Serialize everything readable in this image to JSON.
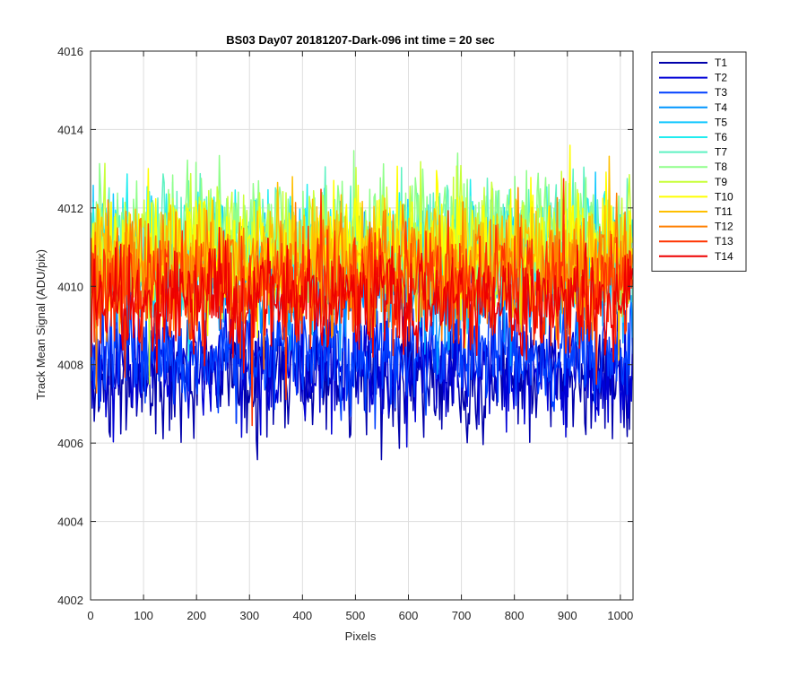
{
  "chart_data": {
    "type": "line",
    "title": "BS03 Day07 20181207-Dark-096 int time = 20 sec",
    "xlabel": "Pixels",
    "ylabel": "Track Mean Signal (ADU/pix)",
    "xlim": [
      0,
      1024
    ],
    "ylim": [
      4002,
      4016
    ],
    "x_ticks": [
      0,
      100,
      200,
      300,
      400,
      500,
      600,
      700,
      800,
      900,
      1000
    ],
    "y_ticks": [
      4002,
      4004,
      4006,
      4008,
      4010,
      4012,
      4014,
      4016
    ],
    "grid": true,
    "legend_position": "outside-top-right",
    "x_range": [
      1,
      1024
    ],
    "series": [
      {
        "name": "T1",
        "color": "#0000aa",
        "mean": 4007.6,
        "spread": 0.95
      },
      {
        "name": "T2",
        "color": "#0000d6",
        "mean": 4007.9,
        "spread": 0.95
      },
      {
        "name": "T3",
        "color": "#0040ff",
        "mean": 4008.3,
        "spread": 0.9
      },
      {
        "name": "T4",
        "color": "#0096ff",
        "mean": 4010.2,
        "spread": 1.0
      },
      {
        "name": "T5",
        "color": "#13c8ff",
        "mean": 4010.6,
        "spread": 1.0
      },
      {
        "name": "T6",
        "color": "#20ecf0",
        "mean": 4010.9,
        "spread": 1.0
      },
      {
        "name": "T7",
        "color": "#5ef2c2",
        "mean": 4011.0,
        "spread": 1.0
      },
      {
        "name": "T8",
        "color": "#8fff8a",
        "mean": 4011.2,
        "spread": 1.0
      },
      {
        "name": "T9",
        "color": "#c8ff3a",
        "mean": 4011.1,
        "spread": 1.0
      },
      {
        "name": "T10",
        "color": "#ffff00",
        "mean": 4010.9,
        "spread": 1.0
      },
      {
        "name": "T11",
        "color": "#ffbf00",
        "mean": 4010.7,
        "spread": 1.0
      },
      {
        "name": "T12",
        "color": "#ff7f00",
        "mean": 4010.4,
        "spread": 1.0
      },
      {
        "name": "T13",
        "color": "#ff3300",
        "mean": 4010.0,
        "spread": 1.0
      },
      {
        "name": "T14",
        "color": "#ee0000",
        "mean": 4009.6,
        "spread": 0.9
      }
    ]
  }
}
